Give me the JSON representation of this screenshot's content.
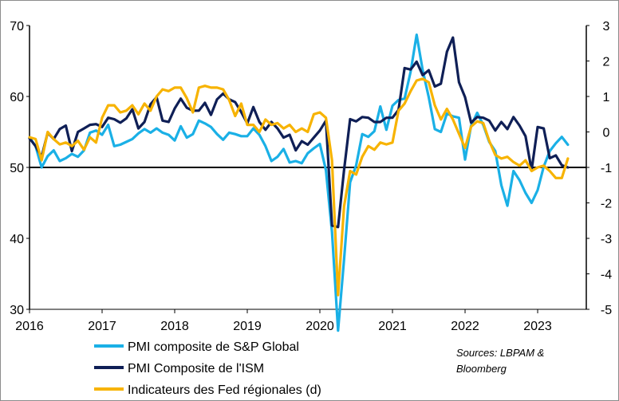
{
  "chart_data": {
    "type": "line",
    "x_start": 2016.0,
    "x_step": 0.08333,
    "xlim": [
      2016.0,
      2023.67
    ],
    "x_ticks": [
      "2016",
      "2017",
      "2018",
      "2019",
      "2020",
      "2021",
      "2022",
      "2023"
    ],
    "ylim_left": [
      30,
      70
    ],
    "y_ticks_left": [
      "30",
      "40",
      "50",
      "60",
      "70"
    ],
    "ylim_right": [
      -5,
      3
    ],
    "y_ticks_right": [
      "-5",
      "-4",
      "-3",
      "-2",
      "-1",
      "0",
      "1",
      "2",
      "3"
    ],
    "reference_line_left": 50,
    "series": [
      {
        "name": "PMI composite de S&P Global",
        "axis": "left",
        "color": "#1ab0e6",
        "values": [
          54.2,
          53.0,
          50.0,
          51.6,
          52.4,
          50.9,
          51.3,
          51.9,
          51.5,
          52.4,
          54.9,
          55.2,
          54.6,
          56.0,
          53.0,
          53.2,
          53.6,
          54.0,
          54.8,
          55.4,
          54.9,
          55.5,
          54.9,
          54.6,
          53.8,
          55.8,
          54.2,
          54.7,
          56.6,
          56.2,
          55.7,
          54.7,
          53.9,
          54.9,
          54.7,
          54.4,
          54.4,
          55.5,
          54.6,
          53.0,
          50.9,
          51.5,
          52.6,
          50.7,
          50.9,
          50.6,
          52.0,
          52.7,
          53.3,
          49.6,
          40.9,
          27.0,
          37.0,
          47.9,
          50.3,
          54.7,
          54.3,
          55.1,
          58.6,
          55.3,
          58.7,
          59.5,
          59.7,
          63.5,
          68.7,
          63.7,
          59.9,
          55.4,
          55.0,
          57.6,
          57.2,
          57.0,
          51.1,
          55.9,
          57.7,
          56.0,
          53.6,
          52.3,
          47.5,
          44.6,
          49.5,
          48.2,
          46.4,
          45.0,
          46.8,
          50.1,
          52.3,
          53.4,
          54.3,
          53.2
        ]
      },
      {
        "name": "PMI Composite de l'ISM",
        "axis": "left",
        "color": "#0f1f56",
        "values": [
          54.1,
          53.0,
          51.5,
          54.9,
          54.0,
          55.4,
          55.9,
          52.3,
          55.0,
          55.5,
          56.0,
          56.1,
          55.7,
          57.0,
          56.8,
          56.3,
          56.9,
          58.2,
          55.5,
          56.4,
          58.9,
          59.9,
          56.6,
          56.4,
          58.3,
          59.7,
          58.4,
          58.0,
          58.0,
          59.1,
          57.4,
          59.6,
          60.4,
          59.6,
          59.2,
          57.8,
          56.2,
          58.5,
          56.4,
          55.3,
          56.4,
          55.5,
          54.2,
          54.6,
          52.4,
          53.7,
          53.2,
          54.2,
          55.2,
          56.6,
          41.8,
          41.6,
          49.6,
          56.8,
          56.5,
          57.1,
          57.0,
          56.4,
          56.4,
          57.0,
          57.0,
          58.1,
          64.0,
          63.8,
          64.9,
          63.0,
          63.7,
          61.4,
          61.8,
          66.3,
          68.3,
          62.0,
          59.9,
          56.3,
          57.1,
          57.0,
          56.6,
          55.2,
          56.4,
          55.4,
          57.1,
          55.9,
          54.4,
          49.6,
          55.7,
          55.5,
          51.3,
          51.7,
          50.3,
          50.0
        ]
      },
      {
        "name": "Indicateurs des Fed régionales (d)",
        "axis": "right",
        "color": "#f7b300",
        "values": [
          -0.15,
          -0.2,
          -0.8,
          0.0,
          -0.2,
          -0.35,
          -0.3,
          -0.4,
          -0.25,
          -0.5,
          -0.15,
          -0.3,
          0.4,
          0.75,
          0.75,
          0.55,
          0.6,
          0.75,
          0.5,
          0.8,
          0.6,
          1.0,
          1.2,
          1.15,
          1.25,
          1.25,
          0.95,
          0.55,
          1.25,
          1.3,
          1.25,
          1.25,
          1.2,
          0.9,
          0.45,
          0.8,
          0.2,
          0.2,
          0.0,
          0.35,
          0.2,
          0.25,
          0.1,
          0.2,
          0.0,
          0.1,
          0.0,
          0.5,
          0.55,
          0.4,
          -0.8,
          -4.6,
          -2.1,
          -1.1,
          -1.2,
          -0.7,
          -0.4,
          -0.5,
          -0.3,
          -0.35,
          -0.3,
          0.6,
          0.8,
          1.15,
          1.45,
          1.5,
          1.4,
          0.75,
          0.35,
          0.65,
          0.35,
          -0.05,
          -0.45,
          0.15,
          0.3,
          0.25,
          -0.25,
          -0.65,
          -0.75,
          -0.7,
          -0.85,
          -0.95,
          -0.8,
          -1.1,
          -1.0,
          -0.95,
          -1.1,
          -1.3,
          -1.3,
          -0.75
        ]
      }
    ],
    "legend": [
      "PMI composite de S&P Global",
      "PMI Composite de l'ISM",
      "Indicateurs des Fed régionales (d)"
    ],
    "source": [
      "Sources: LBPAM &",
      "Bloomberg"
    ]
  }
}
